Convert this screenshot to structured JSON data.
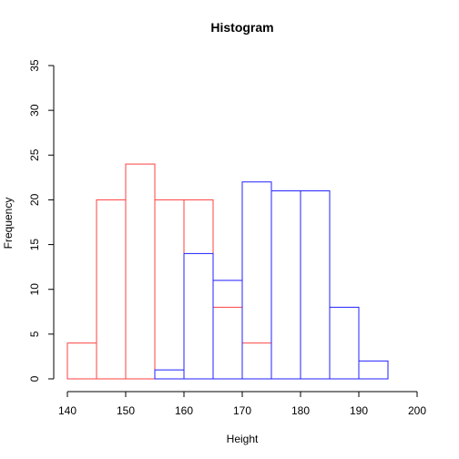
{
  "chart_data": {
    "type": "bar",
    "chart_kind": "overlapping-histogram",
    "title": "Histogram",
    "xlabel": "Height",
    "ylabel": "Frequency",
    "xlim": [
      140,
      200
    ],
    "ylim": [
      0,
      35
    ],
    "x_ticks": [
      "140",
      "150",
      "160",
      "170",
      "180",
      "190",
      "200"
    ],
    "y_ticks": [
      "0",
      "5",
      "10",
      "15",
      "20",
      "25",
      "30",
      "35"
    ],
    "bin_width": 5,
    "grid": false,
    "legend": "none",
    "series": [
      {
        "color": "#ff4040",
        "bins": [
          {
            "start": 140,
            "end": 145,
            "count": 4
          },
          {
            "start": 145,
            "end": 150,
            "count": 20
          },
          {
            "start": 150,
            "end": 155,
            "count": 24
          },
          {
            "start": 155,
            "end": 160,
            "count": 20
          },
          {
            "start": 160,
            "end": 165,
            "count": 20
          },
          {
            "start": 165,
            "end": 170,
            "count": 8
          },
          {
            "start": 170,
            "end": 175,
            "count": 4
          }
        ]
      },
      {
        "color": "#2020ff",
        "bins": [
          {
            "start": 155,
            "end": 160,
            "count": 1
          },
          {
            "start": 160,
            "end": 165,
            "count": 14
          },
          {
            "start": 165,
            "end": 170,
            "count": 11
          },
          {
            "start": 170,
            "end": 175,
            "count": 22
          },
          {
            "start": 175,
            "end": 180,
            "count": 21
          },
          {
            "start": 180,
            "end": 185,
            "count": 21
          },
          {
            "start": 185,
            "end": 190,
            "count": 8
          },
          {
            "start": 190,
            "end": 195,
            "count": 2
          }
        ]
      }
    ]
  }
}
